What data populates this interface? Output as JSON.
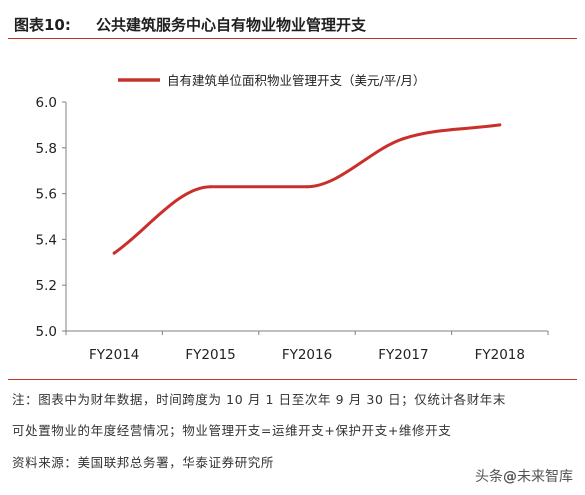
{
  "figure": {
    "label": "图表10:",
    "title": "公共建筑服务中心自有物业物业管理开支"
  },
  "chart_data": {
    "type": "line",
    "categories": [
      "FY2014",
      "FY2015",
      "FY2016",
      "FY2017",
      "FY2018"
    ],
    "series": [
      {
        "name": "自有建筑单位面积物业管理开支（美元/平/月）",
        "values": [
          5.34,
          5.63,
          5.63,
          5.84,
          5.9
        ],
        "color": "#c9302c"
      }
    ],
    "y_ticks": [
      "5.0",
      "5.2",
      "5.4",
      "5.6",
      "5.8",
      "6.0"
    ],
    "ylim": [
      5.0,
      6.0
    ],
    "smooth": true,
    "grid": false,
    "legend": "top-center"
  },
  "notes": {
    "line1": "注：图表中为财年数据，时间跨度为 10 月 1 日至次年 9 月 30 日；仅统计各财年末",
    "line2": "可处置物业的年度经营情况；物业管理开支=运维开支+保护开支+维修开支",
    "source": "资料来源：美国联邦总务署，华泰证券研究所"
  },
  "watermark": {
    "prefix": "头条",
    "at": "@",
    "handle": "未来智库"
  },
  "colors": {
    "accent": "#c9302c",
    "axis": "#808080"
  }
}
